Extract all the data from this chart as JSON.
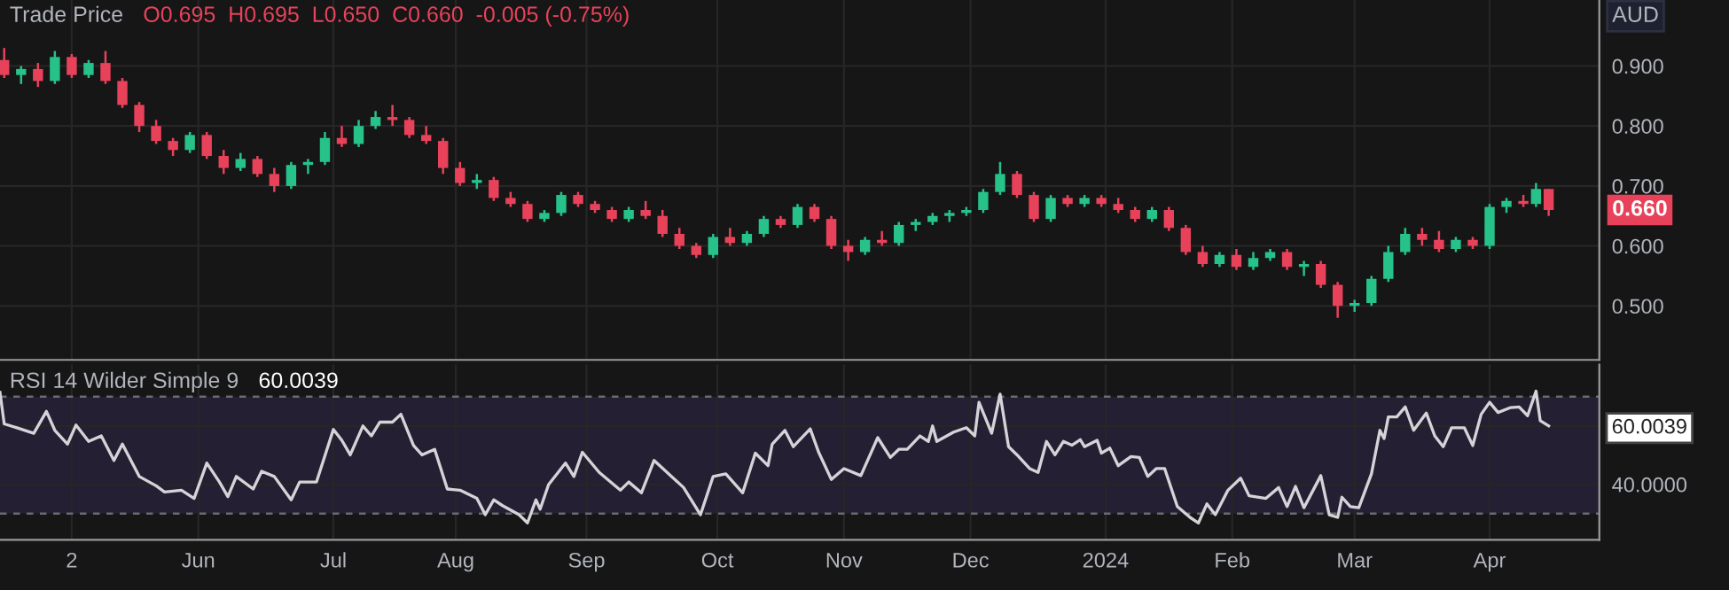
{
  "chart_data": [
    {
      "type": "candlestick",
      "title": "Trade Price",
      "annotations": [
        "O0.695  H0.695  L0.650  C0.660  -0.005 (-0.75%)",
        "AUD",
        {
          "text": "0.660",
          "x": "2024-04-16",
          "y": 0.66
        }
      ],
      "x": [
        "2023-04-16",
        "2023-04-20",
        "2023-04-24",
        "2023-04-28",
        "2023-05-02",
        "2023-05-06",
        "2023-05-10",
        "2023-05-14",
        "2023-05-18",
        "2023-05-22",
        "2023-05-26",
        "2023-05-30",
        "2023-06-03",
        "2023-06-07",
        "2023-06-11",
        "2023-06-15",
        "2023-06-19",
        "2023-06-23",
        "2023-06-27",
        "2023-07-01",
        "2023-07-05",
        "2023-07-09",
        "2023-07-13",
        "2023-07-17",
        "2023-07-21",
        "2023-07-25",
        "2023-07-29",
        "2023-08-02",
        "2023-08-06",
        "2023-08-10",
        "2023-08-14",
        "2023-08-18",
        "2023-08-22",
        "2023-08-26",
        "2023-08-30",
        "2023-09-03",
        "2023-09-07",
        "2023-09-11",
        "2023-09-15",
        "2023-09-19",
        "2023-09-23",
        "2023-09-27",
        "2023-10-01",
        "2023-10-05",
        "2023-10-09",
        "2023-10-13",
        "2023-10-17",
        "2023-10-21",
        "2023-10-25",
        "2023-10-29",
        "2023-11-02",
        "2023-11-06",
        "2023-11-10",
        "2023-11-14",
        "2023-11-18",
        "2023-11-22",
        "2023-11-26",
        "2023-11-30",
        "2023-12-04",
        "2023-12-08",
        "2023-12-12",
        "2023-12-16",
        "2023-12-20",
        "2023-12-24",
        "2023-12-28",
        "2024-01-01",
        "2024-01-05",
        "2024-01-09",
        "2024-01-13",
        "2024-01-17",
        "2024-01-21",
        "2024-01-25",
        "2024-01-29",
        "2024-02-02",
        "2024-02-06",
        "2024-02-10",
        "2024-02-14",
        "2024-02-18",
        "2024-02-22",
        "2024-02-26",
        "2024-03-01",
        "2024-03-05",
        "2024-03-09",
        "2024-03-13",
        "2024-03-17",
        "2024-03-21",
        "2024-03-25",
        "2024-03-29",
        "2024-04-02",
        "2024-04-06",
        "2024-04-10",
        "2024-04-13",
        "2024-04-16"
      ],
      "ohlc": [
        [
          0.91,
          0.93,
          0.88,
          0.885
        ],
        [
          0.885,
          0.9,
          0.87,
          0.895
        ],
        [
          0.895,
          0.905,
          0.865,
          0.875
        ],
        [
          0.875,
          0.925,
          0.87,
          0.915
        ],
        [
          0.915,
          0.92,
          0.88,
          0.885
        ],
        [
          0.885,
          0.91,
          0.88,
          0.905
        ],
        [
          0.905,
          0.925,
          0.87,
          0.875
        ],
        [
          0.875,
          0.88,
          0.83,
          0.835
        ],
        [
          0.835,
          0.84,
          0.79,
          0.8
        ],
        [
          0.8,
          0.81,
          0.77,
          0.775
        ],
        [
          0.775,
          0.78,
          0.75,
          0.76
        ],
        [
          0.76,
          0.79,
          0.755,
          0.785
        ],
        [
          0.785,
          0.79,
          0.745,
          0.75
        ],
        [
          0.75,
          0.76,
          0.72,
          0.73
        ],
        [
          0.73,
          0.755,
          0.725,
          0.745
        ],
        [
          0.745,
          0.75,
          0.715,
          0.72
        ],
        [
          0.72,
          0.73,
          0.69,
          0.7
        ],
        [
          0.7,
          0.74,
          0.695,
          0.735
        ],
        [
          0.735,
          0.745,
          0.72,
          0.74
        ],
        [
          0.74,
          0.79,
          0.735,
          0.78
        ],
        [
          0.78,
          0.8,
          0.765,
          0.77
        ],
        [
          0.77,
          0.81,
          0.765,
          0.8
        ],
        [
          0.8,
          0.825,
          0.795,
          0.815
        ],
        [
          0.815,
          0.835,
          0.8,
          0.81
        ],
        [
          0.81,
          0.815,
          0.78,
          0.785
        ],
        [
          0.785,
          0.8,
          0.77,
          0.775
        ],
        [
          0.775,
          0.78,
          0.72,
          0.73
        ],
        [
          0.73,
          0.74,
          0.7,
          0.705
        ],
        [
          0.705,
          0.72,
          0.695,
          0.71
        ],
        [
          0.71,
          0.715,
          0.675,
          0.68
        ],
        [
          0.68,
          0.69,
          0.665,
          0.67
        ],
        [
          0.67,
          0.675,
          0.64,
          0.645
        ],
        [
          0.645,
          0.66,
          0.64,
          0.655
        ],
        [
          0.655,
          0.69,
          0.65,
          0.685
        ],
        [
          0.685,
          0.69,
          0.665,
          0.67
        ],
        [
          0.67,
          0.675,
          0.655,
          0.66
        ],
        [
          0.66,
          0.665,
          0.64,
          0.645
        ],
        [
          0.645,
          0.665,
          0.64,
          0.66
        ],
        [
          0.66,
          0.675,
          0.645,
          0.65
        ],
        [
          0.65,
          0.66,
          0.615,
          0.62
        ],
        [
          0.62,
          0.63,
          0.595,
          0.6
        ],
        [
          0.6,
          0.605,
          0.58,
          0.585
        ],
        [
          0.585,
          0.62,
          0.58,
          0.615
        ],
        [
          0.615,
          0.63,
          0.6,
          0.605
        ],
        [
          0.605,
          0.625,
          0.6,
          0.62
        ],
        [
          0.62,
          0.65,
          0.615,
          0.645
        ],
        [
          0.645,
          0.65,
          0.63,
          0.635
        ],
        [
          0.635,
          0.67,
          0.63,
          0.665
        ],
        [
          0.665,
          0.67,
          0.64,
          0.645
        ],
        [
          0.645,
          0.65,
          0.595,
          0.6
        ],
        [
          0.6,
          0.61,
          0.575,
          0.59
        ],
        [
          0.59,
          0.615,
          0.585,
          0.61
        ],
        [
          0.61,
          0.625,
          0.6,
          0.605
        ],
        [
          0.605,
          0.64,
          0.6,
          0.635
        ],
        [
          0.635,
          0.645,
          0.625,
          0.64
        ],
        [
          0.64,
          0.655,
          0.635,
          0.65
        ],
        [
          0.65,
          0.66,
          0.64,
          0.655
        ],
        [
          0.655,
          0.665,
          0.65,
          0.66
        ],
        [
          0.66,
          0.695,
          0.655,
          0.69
        ],
        [
          0.69,
          0.74,
          0.685,
          0.72
        ],
        [
          0.72,
          0.725,
          0.68,
          0.685
        ],
        [
          0.685,
          0.69,
          0.64,
          0.645
        ],
        [
          0.645,
          0.685,
          0.64,
          0.68
        ],
        [
          0.68,
          0.685,
          0.665,
          0.67
        ],
        [
          0.67,
          0.685,
          0.665,
          0.68
        ],
        [
          0.68,
          0.685,
          0.665,
          0.67
        ],
        [
          0.67,
          0.68,
          0.655,
          0.66
        ],
        [
          0.66,
          0.665,
          0.64,
          0.645
        ],
        [
          0.645,
          0.665,
          0.64,
          0.66
        ],
        [
          0.66,
          0.665,
          0.625,
          0.63
        ],
        [
          0.63,
          0.635,
          0.585,
          0.59
        ],
        [
          0.59,
          0.6,
          0.565,
          0.57
        ],
        [
          0.57,
          0.59,
          0.565,
          0.585
        ],
        [
          0.585,
          0.595,
          0.56,
          0.565
        ],
        [
          0.565,
          0.59,
          0.56,
          0.58
        ],
        [
          0.58,
          0.595,
          0.575,
          0.59
        ],
        [
          0.59,
          0.595,
          0.56,
          0.565
        ],
        [
          0.565,
          0.575,
          0.55,
          0.57
        ],
        [
          0.57,
          0.575,
          0.53,
          0.535
        ],
        [
          0.535,
          0.54,
          0.48,
          0.5
        ],
        [
          0.5,
          0.51,
          0.49,
          0.505
        ],
        [
          0.505,
          0.55,
          0.5,
          0.545
        ],
        [
          0.545,
          0.6,
          0.54,
          0.59
        ],
        [
          0.59,
          0.63,
          0.585,
          0.62
        ],
        [
          0.62,
          0.63,
          0.6,
          0.61
        ],
        [
          0.61,
          0.625,
          0.59,
          0.595
        ],
        [
          0.595,
          0.615,
          0.59,
          0.61
        ],
        [
          0.61,
          0.615,
          0.595,
          0.6
        ],
        [
          0.6,
          0.67,
          0.595,
          0.665
        ],
        [
          0.665,
          0.68,
          0.655,
          0.675
        ],
        [
          0.675,
          0.685,
          0.665,
          0.67
        ],
        [
          0.67,
          0.705,
          0.665,
          0.695
        ],
        [
          0.695,
          0.695,
          0.65,
          0.66
        ]
      ],
      "colors": [
        "#e8425a",
        "#26c28a",
        "#e8425a",
        "#26c28a",
        "#e8425a",
        "#26c28a",
        "#e8425a",
        "#e8425a",
        "#e8425a",
        "#e8425a",
        "#e8425a",
        "#26c28a",
        "#e8425a",
        "#e8425a",
        "#26c28a",
        "#e8425a",
        "#e8425a",
        "#26c28a",
        "#26c28a",
        "#26c28a",
        "#e8425a",
        "#26c28a",
        "#26c28a",
        "#e8425a",
        "#e8425a",
        "#e8425a",
        "#e8425a",
        "#e8425a",
        "#26c28a",
        "#e8425a",
        "#e8425a",
        "#e8425a",
        "#26c28a",
        "#26c28a",
        "#e8425a",
        "#e8425a",
        "#e8425a",
        "#26c28a",
        "#e8425a",
        "#e8425a",
        "#e8425a",
        "#e8425a",
        "#26c28a",
        "#e8425a",
        "#26c28a",
        "#26c28a",
        "#e8425a",
        "#26c28a",
        "#e8425a",
        "#e8425a",
        "#e8425a",
        "#26c28a",
        "#e8425a",
        "#26c28a",
        "#26c28a",
        "#26c28a",
        "#26c28a",
        "#26c28a",
        "#26c28a",
        "#26c28a",
        "#e8425a",
        "#e8425a",
        "#26c28a",
        "#e8425a",
        "#26c28a",
        "#e8425a",
        "#e8425a",
        "#e8425a",
        "#26c28a",
        "#e8425a",
        "#e8425a",
        "#e8425a",
        "#26c28a",
        "#e8425a",
        "#26c28a",
        "#26c28a",
        "#e8425a",
        "#26c28a",
        "#e8425a",
        "#e8425a",
        "#26c28a",
        "#26c28a",
        "#26c28a",
        "#26c28a",
        "#e8425a",
        "#e8425a",
        "#26c28a",
        "#e8425a",
        "#26c28a",
        "#26c28a",
        "#e8425a",
        "#26c28a",
        "#e8425a"
      ],
      "xlim": [
        "2023-04-15",
        "2024-04-28"
      ],
      "xticks": [
        {
          "value": "2023-05-02",
          "label": null
        },
        {
          "value": "2023-06-01",
          "label": null
        },
        {
          "value": "2023-07-03",
          "label": null
        },
        {
          "value": "2023-08-01",
          "label": null
        },
        {
          "value": "2023-09-01",
          "label": null
        },
        {
          "value": "2023-10-02",
          "label": null
        },
        {
          "value": "2023-11-01",
          "label": null
        },
        {
          "value": "2023-12-01",
          "label": null
        },
        {
          "value": "2024-01-02",
          "label": null
        },
        {
          "value": "2024-02-01",
          "label": null
        },
        {
          "value": "2024-03-01",
          "label": null
        },
        {
          "value": "2024-04-02",
          "label": null
        }
      ],
      "ylim": [
        0.41,
        1.01
      ],
      "yticks": [
        {
          "value": 0.5,
          "label": "0.500"
        },
        {
          "value": 0.6,
          "label": "0.600"
        },
        {
          "value": 0.7,
          "label": "0.700"
        },
        {
          "value": 0.8,
          "label": "0.800"
        },
        {
          "value": 0.9,
          "label": "0.900"
        }
      ],
      "grid": true,
      "tick_labels": "y"
    },
    {
      "type": "line",
      "title": "RSI 14 Wilder Simple 9",
      "annotations": [
        "60.0039"
      ],
      "series": [
        {
          "color": "#d4d4d8",
          "x": [
            "2023-04-15",
            "2023-04-16",
            "2023-04-19",
            "2023-04-23",
            "2023-04-26",
            "2023-04-28",
            "2023-05-01",
            "2023-05-03",
            "2023-05-06",
            "2023-05-09",
            "2023-05-12",
            "2023-05-14",
            "2023-05-18",
            "2023-05-22",
            "2023-05-24",
            "2023-05-28",
            "2023-05-31",
            "2023-06-03",
            "2023-06-06",
            "2023-06-08",
            "2023-06-10",
            "2023-06-14",
            "2023-06-16",
            "2023-06-19",
            "2023-06-23",
            "2023-06-25",
            "2023-06-29",
            "2023-07-03",
            "2023-07-05",
            "2023-07-07",
            "2023-07-10",
            "2023-07-12",
            "2023-07-14",
            "2023-07-17",
            "2023-07-19",
            "2023-07-22",
            "2023-07-24",
            "2023-07-27",
            "2023-07-30",
            "2023-08-02",
            "2023-08-06",
            "2023-08-08",
            "2023-08-10",
            "2023-08-12",
            "2023-08-16",
            "2023-08-18",
            "2023-08-20",
            "2023-08-21",
            "2023-08-23",
            "2023-08-27",
            "2023-08-29",
            "2023-08-31",
            "2023-09-04",
            "2023-09-09",
            "2023-09-11",
            "2023-09-14",
            "2023-09-17",
            "2023-09-24",
            "2023-09-28",
            "2023-10-01",
            "2023-10-04",
            "2023-10-08",
            "2023-10-11",
            "2023-10-14",
            "2023-10-15",
            "2023-10-18",
            "2023-10-20",
            "2023-10-24",
            "2023-10-26",
            "2023-10-29",
            "2023-11-01",
            "2023-11-05",
            "2023-11-09",
            "2023-11-12",
            "2023-11-14",
            "2023-11-16",
            "2023-11-19",
            "2023-11-21",
            "2023-11-22",
            "2023-11-23",
            "2023-11-27",
            "2023-11-30",
            "2023-12-02",
            "2023-12-03",
            "2023-12-06",
            "2023-12-08",
            "2023-12-10",
            "2023-12-12",
            "2023-12-15",
            "2023-12-17",
            "2023-12-19",
            "2023-12-21",
            "2023-12-23",
            "2023-12-25",
            "2023-12-27",
            "2023-12-28",
            "2023-12-31",
            "2024-01-01",
            "2024-01-03",
            "2024-01-05",
            "2024-01-08",
            "2024-01-10",
            "2024-01-12",
            "2024-01-14",
            "2024-01-16",
            "2024-01-19",
            "2024-01-22",
            "2024-01-24",
            "2024-01-26",
            "2024-01-28",
            "2024-01-31",
            "2024-02-03",
            "2024-02-05",
            "2024-02-09",
            "2024-02-12",
            "2024-02-14",
            "2024-02-16",
            "2024-02-18",
            "2024-02-22",
            "2024-02-24",
            "2024-02-26",
            "2024-02-27",
            "2024-02-29",
            "2024-03-02",
            "2024-03-05",
            "2024-03-07",
            "2024-03-08",
            "2024-03-09",
            "2024-03-11",
            "2024-03-13",
            "2024-03-15",
            "2024-03-18",
            "2024-03-20",
            "2024-03-22",
            "2024-03-24",
            "2024-03-27",
            "2024-03-29",
            "2024-03-31",
            "2024-04-02",
            "2024-04-04",
            "2024-04-07",
            "2024-04-09",
            "2024-04-11",
            "2024-04-13",
            "2024-04-14",
            "2024-04-16"
          ],
          "values": [
            71.5,
            60.7,
            59.4,
            57.5,
            65,
            58.5,
            53.8,
            60.3,
            54.7,
            56.6,
            48.2,
            53.8,
            42.7,
            39.5,
            37.4,
            38,
            35.2,
            47.3,
            40.8,
            35.8,
            42.7,
            38.4,
            44.5,
            42.7,
            34.7,
            40.8,
            40.8,
            58.8,
            55.1,
            50.1,
            60,
            56.6,
            61.3,
            61.3,
            64,
            53.3,
            50.1,
            52,
            38.4,
            38,
            35.2,
            29.6,
            34.7,
            32.8,
            29.6,
            26.8,
            34.7,
            31.5,
            39.9,
            47.3,
            42.7,
            51,
            44.1,
            38,
            40.8,
            37.1,
            48.2,
            38.9,
            29.6,
            42.7,
            43.6,
            37.1,
            50.7,
            46.4,
            53.8,
            58.5,
            52.9,
            59,
            51,
            41.7,
            45.4,
            43,
            56,
            49.2,
            52,
            52,
            56.6,
            54.7,
            60,
            54.7,
            57.9,
            59.4,
            56.6,
            68.1,
            57.5,
            70.9,
            52.9,
            50.1,
            45.4,
            44.1,
            54.7,
            50.1,
            54.7,
            53.4,
            55.3,
            52.9,
            55.1,
            50.7,
            52.4,
            46.4,
            49.5,
            49.2,
            42.7,
            45.4,
            45.4,
            32.4,
            28.7,
            26.8,
            33.3,
            29.6,
            38,
            42.1,
            36.1,
            35.2,
            38.9,
            32.4,
            39.3,
            32,
            43,
            29.6,
            28.7,
            35.6,
            32.4,
            32,
            43.6,
            58.5,
            55.7,
            63.1,
            63.1,
            66.5,
            58.5,
            64.4,
            56.6,
            52.9,
            59.4,
            59.4,
            53.3,
            64,
            68.1,
            64.6,
            66.3,
            66.5,
            63.5,
            71.9,
            61.8,
            60.0039
          ]
        }
      ],
      "xlim": [
        "2023-04-15",
        "2024-04-28"
      ],
      "xticks": [
        {
          "value": "2023-05-02",
          "label": "2"
        },
        {
          "value": "2023-06-01",
          "label": "Jun"
        },
        {
          "value": "2023-07-03",
          "label": "Jul"
        },
        {
          "value": "2023-08-01",
          "label": "Aug"
        },
        {
          "value": "2023-09-01",
          "label": "Sep"
        },
        {
          "value": "2023-10-02",
          "label": "Oct"
        },
        {
          "value": "2023-11-01",
          "label": "Nov"
        },
        {
          "value": "2023-12-01",
          "label": "Dec"
        },
        {
          "value": "2024-01-02",
          "label": "2024"
        },
        {
          "value": "2024-02-01",
          "label": "Feb"
        },
        {
          "value": "2024-03-01",
          "label": "Mar"
        },
        {
          "value": "2024-04-02",
          "label": "Apr"
        }
      ],
      "ylim": [
        21,
        81
      ],
      "yticks": [
        {
          "value": 40,
          "label": "40.0000"
        },
        {
          "value": 60.0039,
          "label": "60.0039"
        }
      ],
      "bands": [
        {
          "axis": "y",
          "from": 30,
          "to": 70,
          "color": "#251f33"
        }
      ],
      "ref_lines": [
        {
          "axis": "y",
          "value": 70,
          "color": "#6a6a70",
          "line_style": "dashed"
        },
        {
          "axis": "y",
          "value": 30,
          "color": "#6a6a70",
          "line_style": "dashed"
        }
      ],
      "grid": true
    }
  ]
}
